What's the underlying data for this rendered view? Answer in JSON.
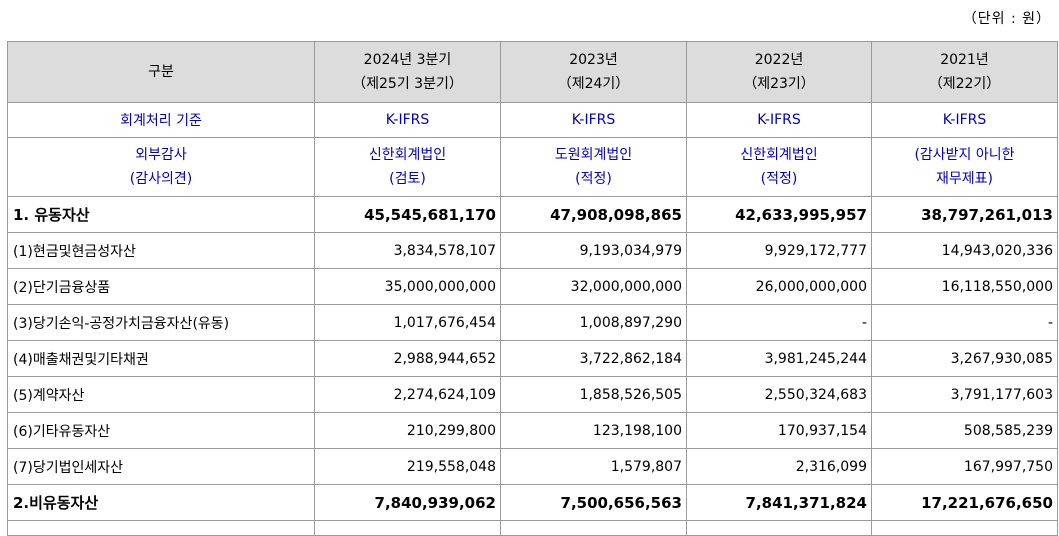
{
  "unit_note": "（단위 : 원）",
  "header": {
    "col0": "구분",
    "cols": [
      {
        "line1": "2024년 3분기",
        "line2": "（제25기 3분기）"
      },
      {
        "line1": "2023년",
        "line2": "（제24기）"
      },
      {
        "line1": "2022년",
        "line2": "（제23기）"
      },
      {
        "line1": "2021년",
        "line2": "（제22기）"
      }
    ]
  },
  "standard_row": {
    "label": "회계처리 기준",
    "values": [
      "K-IFRS",
      "K-IFRS",
      "K-IFRS",
      "K-IFRS"
    ]
  },
  "audit_row": {
    "label_line1": "외부감사",
    "label_line2": "(감사의견)",
    "values": [
      {
        "line1": "신한회계법인",
        "line2": "(검토)"
      },
      {
        "line1": "도원회계법인",
        "line2": "(적정)"
      },
      {
        "line1": "신한회계법인",
        "line2": "(적정)"
      },
      {
        "line1": "(감사받지 아니한",
        "line2": "재무제표)"
      }
    ]
  },
  "rows": [
    {
      "label": "1. 유동자산",
      "values": [
        "45,545,681,170",
        "47,908,098,865",
        "42,633,995,957",
        "38,797,261,013"
      ]
    },
    {
      "label": "(1)현금및현금성자산",
      "values": [
        "3,834,578,107",
        "9,193,034,979",
        "9,929,172,777",
        "14,943,020,336"
      ]
    },
    {
      "label": "(2)단기금융상품",
      "values": [
        "35,000,000,000",
        "32,000,000,000",
        "26,000,000,000",
        "16,118,550,000"
      ]
    },
    {
      "label": "(3)당기손익-공정가치금융자산(유동)",
      "values": [
        "1,017,676,454",
        "1,008,897,290",
        "-",
        "-"
      ]
    },
    {
      "label": "(4)매출채권및기타채권",
      "values": [
        "2,988,944,652",
        "3,722,862,184",
        "3,981,245,244",
        "3,267,930,085"
      ]
    },
    {
      "label": "(5)계약자산",
      "values": [
        "2,274,624,109",
        "1,858,526,505",
        "2,550,324,683",
        "3,791,177,603"
      ]
    },
    {
      "label": "(6)기타유동자산",
      "values": [
        "210,299,800",
        "123,198,100",
        "170,937,154",
        "508,585,239"
      ]
    },
    {
      "label": "(7)당기법인세자산",
      "values": [
        "219,558,048",
        "1,579,807",
        "2,316,099",
        "167,997,750"
      ]
    },
    {
      "label": "2.비유동자산",
      "values": [
        "7,840,939,062",
        "7,500,656,563",
        "7,841,371,824",
        "17,221,676,650"
      ]
    }
  ]
}
